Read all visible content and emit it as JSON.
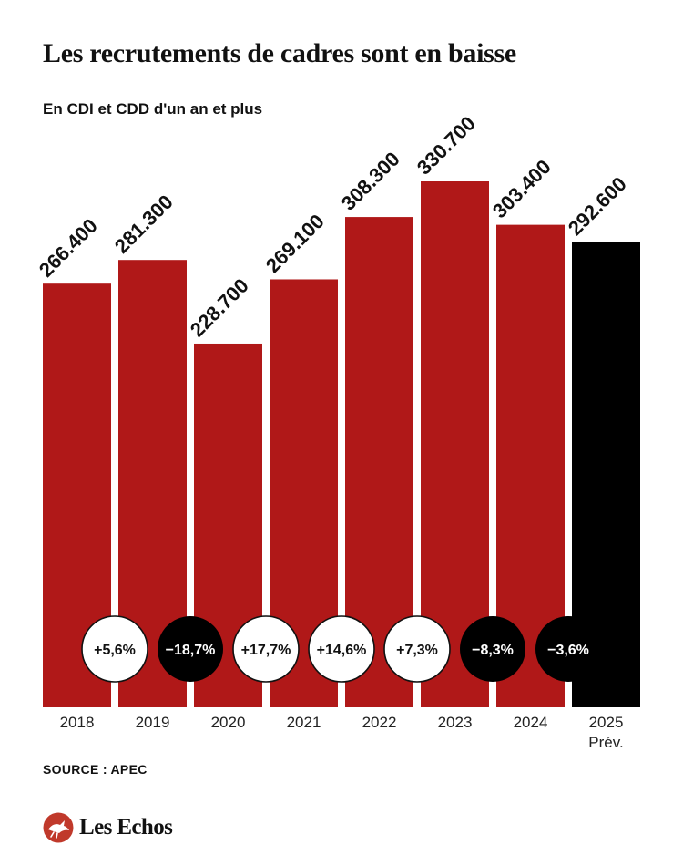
{
  "header": {
    "title": "Les recrutements de cadres sont en baisse",
    "subtitle": "En CDI et CDD d'un an et plus"
  },
  "footer": {
    "source": "SOURCE : APEC",
    "brand": "Les Echos"
  },
  "colors": {
    "bar_actual": "#b01818",
    "bar_forecast": "#000000",
    "badge_positive_bg": "#ffffff",
    "badge_negative_bg": "#000000",
    "brand_red": "#c0392b"
  },
  "chart_data": {
    "type": "bar",
    "title": "Les recrutements de cadres sont en baisse",
    "subtitle": "En CDI et CDD d'un an et plus",
    "categories": [
      "2018",
      "2019",
      "2020",
      "2021",
      "2022",
      "2023",
      "2024",
      "2025"
    ],
    "category_sublabels": [
      "",
      "",
      "",
      "",
      "",
      "",
      "",
      "Prév."
    ],
    "values": [
      266400,
      281300,
      228700,
      269100,
      308300,
      330700,
      303400,
      292600
    ],
    "value_labels": [
      "266.400",
      "281.300",
      "228.700",
      "269.100",
      "308.300",
      "330.700",
      "303.400",
      "292.600"
    ],
    "forecast": [
      false,
      false,
      false,
      false,
      false,
      false,
      false,
      true
    ],
    "changes": [
      {
        "between": [
          "2018",
          "2019"
        ],
        "label": "+5,6%",
        "sign": "positive"
      },
      {
        "between": [
          "2019",
          "2020"
        ],
        "label": "−18,7%",
        "sign": "negative"
      },
      {
        "between": [
          "2020",
          "2021"
        ],
        "label": "+17,7%",
        "sign": "positive"
      },
      {
        "between": [
          "2021",
          "2022"
        ],
        "label": "+14,6%",
        "sign": "positive"
      },
      {
        "between": [
          "2022",
          "2023"
        ],
        "label": "+7,3%",
        "sign": "positive"
      },
      {
        "between": [
          "2023",
          "2024"
        ],
        "label": "−8,3%",
        "sign": "negative"
      },
      {
        "between": [
          "2024",
          "2025"
        ],
        "label": "−3,6%",
        "sign": "negative"
      }
    ],
    "xlabel": "",
    "ylabel": "",
    "ylim": [
      0,
      330700
    ],
    "grid": false,
    "legend": "none"
  }
}
